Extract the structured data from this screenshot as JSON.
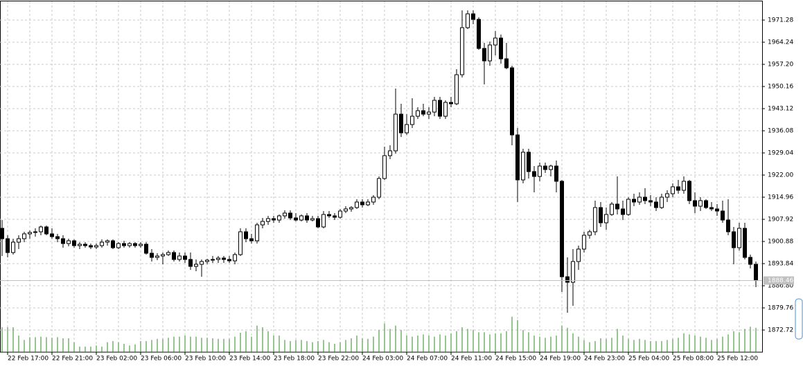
{
  "chart_data": {
    "type": "candlestick",
    "categories": [
      null,
      "22 Feb 17:00",
      null,
      null,
      null,
      null,
      null,
      null,
      null,
      "22 Feb 21:00",
      null,
      null,
      null,
      null,
      null,
      null,
      null,
      "23 Feb 02:00",
      null,
      null,
      null,
      null,
      null,
      null,
      null,
      "23 Feb 06:00",
      null,
      null,
      null,
      null,
      null,
      null,
      null,
      "23 Feb 10:00",
      null,
      null,
      null,
      null,
      null,
      null,
      null,
      "23 Feb 14:00",
      null,
      null,
      null,
      null,
      null,
      null,
      null,
      "23 Feb 18:00",
      null,
      null,
      null,
      null,
      null,
      null,
      null,
      "23 Feb 22:00",
      null,
      null,
      null,
      null,
      null,
      null,
      null,
      "24 Feb 03:00",
      null,
      null,
      null,
      null,
      null,
      null,
      null,
      "24 Feb 07:00",
      null,
      null,
      null,
      null,
      null,
      null,
      null,
      "24 Feb 11:00",
      null,
      null,
      null,
      null,
      null,
      null,
      null,
      "24 Feb 15:00",
      null,
      null,
      null,
      null,
      null,
      null,
      null,
      "24 Feb 19:00",
      null,
      null,
      null,
      null,
      null,
      null,
      null,
      "24 Feb 23:00",
      null,
      null,
      null,
      null,
      null,
      null,
      null,
      "25 Feb 04:00",
      null,
      null,
      null,
      null,
      null,
      null,
      null,
      "25 Feb 08:00",
      null,
      null,
      null,
      null,
      null,
      null,
      null,
      "25 Feb 12:00",
      null,
      null,
      null,
      null,
      null,
      null,
      null
    ],
    "open": [
      1905.06,
      1901.76,
      1897.36,
      1900.66,
      1901.76,
      1903.3,
      1903.74,
      1903.96,
      1905.5,
      1903.3,
      1902.42,
      1901.76,
      1900.22,
      1901.1,
      1899.56,
      1900.0,
      1899.56,
      1899.12,
      1899.56,
      1900.66,
      1901.1,
      1898.9,
      1900.22,
      1899.56,
      1900.22,
      1899.56,
      1900.0,
      1897.14,
      1895.82,
      1896.26,
      1896.7,
      1897.36,
      1895.16,
      1896.26,
      1895.16,
      1892.96,
      1893.62,
      1894.5,
      1894.94,
      1895.16,
      1895.6,
      1895.16,
      1894.72,
      1896.7,
      1903.96,
      1901.76,
      1901.1,
      1906.16,
      1907.26,
      1908.14,
      1907.7,
      1909.02,
      1909.9,
      1908.36,
      1907.7,
      1909.02,
      1907.7,
      1908.14,
      1905.5,
      1909.46,
      1909.02,
      1908.58,
      1910.56,
      1911.22,
      1911.66,
      1913.42,
      1912.54,
      1913.42,
      1914.96,
      1920.9,
      1928.16,
      1929.7,
      1941.36,
      1935.42,
      1938.06,
      1940.7,
      1942.46,
      1941.36,
      1942.02,
      1945.76,
      1940.7,
      1945.1,
      1944.66,
      1953.9,
      1968.86,
      1973.26,
      1971.5,
      1962.26,
      1958.3,
      1963.36,
      1965.56,
      1958.96,
      1956.1,
      1934.76,
      1920.46,
      1929.26,
      1923.1,
      1921.56,
      1924.86,
      1923.76,
      1924.86,
      1920.02,
      1889.66,
      1887.9,
      1894.5,
      1898.46,
      1902.86,
      1903.96,
      1911.66,
      1906.82,
      1909.46,
      1912.76,
      1911.22,
      1909.46,
      1914.3,
      1913.42,
      1914.96,
      1913.86,
      1913.42,
      1911.66,
      1914.96,
      1916.06,
      1918.26,
      1917.16,
      1920.02,
      1913.86,
      1912.1,
      1913.86,
      1911.66,
      1911.22,
      1910.56,
      1907.7,
      1903.96,
      1898.9,
      1905.06,
      1895.82,
      1893.62
    ],
    "high": [
      1907.7,
      1902.86,
      1901.76,
      1902.86,
      1903.96,
      1904.4,
      1905.06,
      1905.94,
      1905.94,
      1905.06,
      1903.3,
      1902.86,
      1901.76,
      1901.54,
      1900.66,
      1900.66,
      1900.22,
      1900.22,
      1901.54,
      1901.54,
      1901.54,
      1900.66,
      1901.1,
      1900.66,
      1900.66,
      1900.66,
      1900.66,
      1898.46,
      1897.14,
      1897.36,
      1898.02,
      1898.02,
      1897.36,
      1897.36,
      1897.36,
      1895.16,
      1895.16,
      1895.38,
      1896.26,
      1896.26,
      1896.26,
      1896.26,
      1897.36,
      1905.06,
      1905.06,
      1903.3,
      1906.82,
      1908.36,
      1909.02,
      1909.02,
      1909.46,
      1910.78,
      1910.78,
      1909.9,
      1909.46,
      1909.9,
      1909.02,
      1909.02,
      1910.56,
      1910.56,
      1909.9,
      1911.22,
      1912.1,
      1912.1,
      1914.3,
      1914.3,
      1914.3,
      1915.62,
      1921.56,
      1931.02,
      1931.46,
      1949.5,
      1944.66,
      1941.36,
      1946.42,
      1943.56,
      1944.66,
      1943.56,
      1946.86,
      1946.86,
      1945.76,
      1946.86,
      1955.66,
      1974.36,
      1974.36,
      1974.36,
      1972.16,
      1964.02,
      1964.46,
      1967.76,
      1966.66,
      1964.02,
      1956.76,
      1936.96,
      1930.36,
      1930.36,
      1924.86,
      1925.96,
      1925.96,
      1925.3,
      1926.62,
      1920.46,
      1895.82,
      1898.46,
      1899.56,
      1903.96,
      1904.62,
      1913.86,
      1913.42,
      1911.66,
      1913.42,
      1921.56,
      1913.86,
      1914.96,
      1916.06,
      1916.5,
      1917.82,
      1915.62,
      1914.96,
      1916.06,
      1917.16,
      1919.36,
      1920.46,
      1921.56,
      1920.46,
      1916.5,
      1914.96,
      1914.3,
      1913.42,
      1912.76,
      1913.86,
      1914.3,
      1905.5,
      1906.82,
      1906.82,
      1896.7,
      1894.5
    ],
    "low": [
      1896.26,
      1895.82,
      1896.7,
      1898.46,
      1900.66,
      1901.76,
      1902.42,
      1902.86,
      1902.86,
      1901.76,
      1900.66,
      1898.9,
      1899.34,
      1898.9,
      1898.46,
      1898.9,
      1898.46,
      1898.46,
      1898.9,
      1899.56,
      1898.46,
      1898.46,
      1898.9,
      1898.9,
      1898.9,
      1898.9,
      1896.7,
      1894.5,
      1894.94,
      1893.62,
      1896.26,
      1894.5,
      1894.5,
      1894.06,
      1891.86,
      1891.42,
      1889.66,
      1893.62,
      1894.06,
      1894.06,
      1894.06,
      1894.06,
      1893.62,
      1896.26,
      1900.66,
      1900.22,
      1900.22,
      1905.06,
      1906.16,
      1906.82,
      1906.82,
      1908.14,
      1907.7,
      1907.26,
      1907.26,
      1906.82,
      1907.26,
      1905.06,
      1905.06,
      1908.36,
      1907.7,
      1908.14,
      1909.9,
      1910.34,
      1911.22,
      1911.66,
      1912.1,
      1912.54,
      1914.3,
      1920.46,
      1927.06,
      1928.82,
      1934.1,
      1934.76,
      1936.96,
      1939.82,
      1940.7,
      1939.82,
      1940.7,
      1939.82,
      1939.82,
      1943.56,
      1944.22,
      1953.02,
      1968.42,
      1969.96,
      1961.82,
      1950.82,
      1956.76,
      1960.06,
      1957.42,
      1955.66,
      1931.46,
      1913.42,
      1919.36,
      1920.9,
      1916.5,
      1920.02,
      1922.66,
      1921.56,
      1916.5,
      1884.82,
      1878.22,
      1880.42,
      1891.86,
      1897.36,
      1901.76,
      1902.86,
      1905.5,
      1904.62,
      1909.02,
      1909.46,
      1907.7,
      1909.02,
      1912.1,
      1912.54,
      1912.76,
      1912.1,
      1910.56,
      1911.22,
      1913.42,
      1914.96,
      1916.06,
      1916.06,
      1912.76,
      1909.9,
      1910.56,
      1911.22,
      1910.56,
      1909.02,
      1906.82,
      1902.86,
      1893.62,
      1898.02,
      1895.16,
      1892.3,
      1886.36
    ],
    "close": [
      1901.76,
      1897.36,
      1900.66,
      1901.76,
      1903.3,
      1903.74,
      1903.96,
      1905.5,
      1903.3,
      1902.42,
      1901.76,
      1900.22,
      1901.1,
      1899.56,
      1900.0,
      1899.56,
      1899.12,
      1899.56,
      1900.66,
      1901.1,
      1898.9,
      1900.22,
      1899.56,
      1900.22,
      1899.56,
      1900.0,
      1897.14,
      1895.82,
      1896.26,
      1896.7,
      1897.36,
      1895.16,
      1896.26,
      1895.16,
      1892.96,
      1893.62,
      1894.5,
      1894.94,
      1895.16,
      1895.6,
      1895.16,
      1894.72,
      1896.7,
      1903.96,
      1901.76,
      1901.1,
      1906.16,
      1907.26,
      1908.14,
      1907.7,
      1909.02,
      1909.9,
      1908.36,
      1907.7,
      1909.02,
      1907.7,
      1908.14,
      1905.5,
      1909.46,
      1909.02,
      1908.58,
      1910.56,
      1911.22,
      1911.66,
      1913.42,
      1912.54,
      1913.42,
      1914.96,
      1920.9,
      1928.16,
      1929.7,
      1941.36,
      1935.42,
      1938.06,
      1940.7,
      1942.46,
      1941.36,
      1942.02,
      1945.76,
      1940.7,
      1945.1,
      1944.66,
      1953.9,
      1968.86,
      1973.26,
      1971.5,
      1962.26,
      1958.3,
      1963.36,
      1965.56,
      1958.96,
      1956.1,
      1934.76,
      1920.46,
      1929.26,
      1923.1,
      1921.56,
      1924.86,
      1923.76,
      1924.86,
      1920.02,
      1889.66,
      1887.9,
      1894.5,
      1898.46,
      1902.86,
      1903.96,
      1911.66,
      1906.82,
      1909.46,
      1912.76,
      1911.22,
      1909.46,
      1914.3,
      1913.42,
      1914.96,
      1913.86,
      1913.42,
      1911.66,
      1914.96,
      1916.06,
      1918.26,
      1917.16,
      1920.02,
      1913.86,
      1912.1,
      1913.86,
      1911.66,
      1911.22,
      1910.56,
      1907.7,
      1903.96,
      1898.9,
      1905.06,
      1895.82,
      1893.62,
      1888.46
    ],
    "volumes": [
      45,
      45,
      45,
      30,
      22,
      27,
      27,
      28,
      27,
      26,
      27,
      25,
      25,
      18,
      10,
      10,
      10,
      12,
      10,
      18,
      20,
      18,
      15,
      12,
      14,
      20,
      20,
      22,
      24,
      24,
      26,
      28,
      28,
      30,
      28,
      28,
      26,
      26,
      25,
      24,
      24,
      24,
      28,
      35,
      38,
      28,
      48,
      45,
      38,
      30,
      30,
      22,
      20,
      22,
      22,
      20,
      18,
      20,
      22,
      18,
      15,
      18,
      22,
      25,
      30,
      25,
      24,
      28,
      40,
      52,
      42,
      48,
      40,
      30,
      28,
      30,
      32,
      30,
      28,
      32,
      30,
      34,
      38,
      45,
      42,
      40,
      36,
      36,
      32,
      34,
      34,
      38,
      64,
      58,
      40,
      36,
      30,
      28,
      26,
      28,
      30,
      48,
      44,
      34,
      28,
      22,
      18,
      20,
      25,
      24,
      26,
      42,
      30,
      24,
      22,
      24,
      22,
      20,
      20,
      20,
      22,
      24,
      26,
      34,
      32,
      30,
      28,
      26,
      22,
      24,
      28,
      32,
      38,
      36,
      42,
      46,
      44
    ],
    "up_color": "#ffffff",
    "down_color": "#000000",
    "wick_color": "#000000",
    "volume_color": "#2e8b22",
    "current_price": 1888.46,
    "ylim": [
      1865.68,
      1977.22
    ],
    "yticks": [
      1971.28,
      1964.24,
      {
        "value": 1957.2,
        "label": "1957.20"
      },
      1950.16,
      1943.12,
      1936.08,
      1929.04,
      {
        "value": 1922,
        "label": "1922.00"
      },
      1914.96,
      1907.92,
      1900.88,
      1893.84,
      {
        "value": 1886.8,
        "label": "1886.80"
      },
      1879.76,
      1872.72
    ],
    "grid": true
  }
}
